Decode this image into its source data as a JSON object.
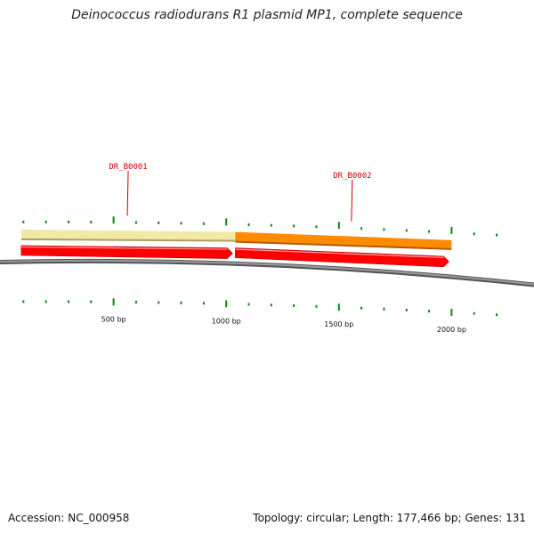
{
  "title": "Deinococcus radiodurans R1 plasmid MP1, complete sequence",
  "genes": [
    {
      "label": "DR_B0001",
      "start_bp": 90,
      "end_bp": 1040,
      "strand": "+",
      "cds_color": "#ff0000",
      "band_color": "#f2e9a4"
    },
    {
      "label": "DR_B0002",
      "start_bp": 1040,
      "end_bp": 2000,
      "strand": "+",
      "cds_color": "#ff0000",
      "band_color": "#ff8c00"
    }
  ],
  "scale": [
    {
      "position_bp": 500,
      "label": "500 bp"
    },
    {
      "position_bp": 1000,
      "label": "1000 bp"
    },
    {
      "position_bp": 1500,
      "label": "1500 bp"
    },
    {
      "position_bp": 2000,
      "label": "2000 bp"
    }
  ],
  "colors": {
    "backbone": "#7a7a7a",
    "ticks": "#0a8a0a",
    "gene_label": "#cc0000"
  },
  "footer": {
    "accession": "Accession: NC_000958",
    "topology": "Topology: circular; Length: 177,466 bp; Genes: 131"
  }
}
